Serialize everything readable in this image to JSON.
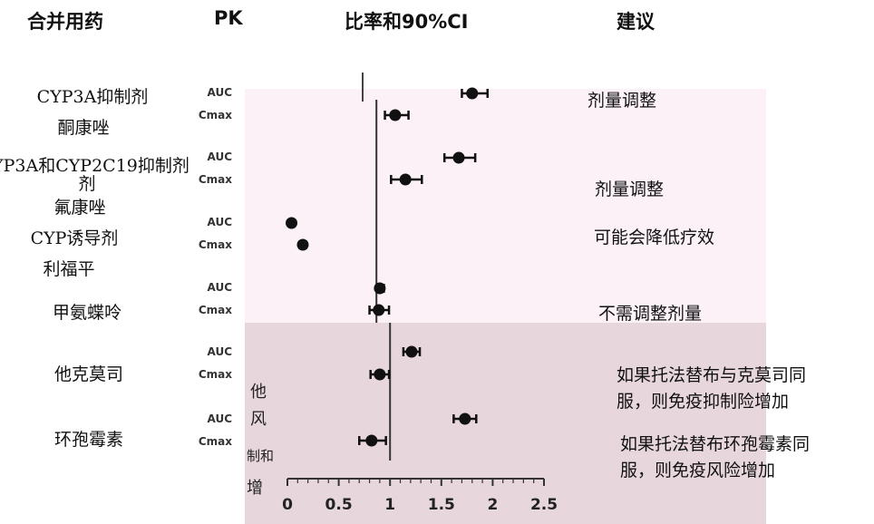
{
  "headers": {
    "drug": "合并用药",
    "pk": "PK",
    "ratio": "比率和90%CI",
    "recommendation": "建议"
  },
  "groups": [
    {
      "class_label": "CYP3A抑制剂",
      "drug": "酮康唑"
    },
    {
      "class_label": "YP3A和CYP2C19抑制剂",
      "class_label_line2": "剂",
      "drug": "氟康唑"
    },
    {
      "class_label": "CYP诱导剂",
      "drug": "利福平"
    },
    {
      "class_label": "",
      "drug": "甲氨蝶呤"
    },
    {
      "class_label": "",
      "drug": "他克莫司"
    },
    {
      "class_label": "",
      "drug": "环孢霉素"
    }
  ],
  "recommendations": [
    {
      "line1": "剂量调整",
      "line2": ""
    },
    {
      "line1": "剂量调整",
      "line2": ""
    },
    {
      "line1": "可能会降低疗效",
      "line2": ""
    },
    {
      "line1": "不需调整剂量",
      "line2": ""
    },
    {
      "line1": "如果托法替布与克莫司同",
      "line2": "服，则免疫抑制险增加"
    },
    {
      "line1": "如果托法替布环孢霉素同",
      "line2": "服，则免疫风险增加"
    }
  ],
  "stray_fragments": [
    "他",
    "风",
    "制和",
    "增"
  ],
  "chart_data": {
    "type": "scatter",
    "xlim": [
      0,
      2.5
    ],
    "x_ticks": [
      0,
      0.5,
      1,
      1.5,
      2,
      2.5
    ],
    "x_tick_labels": [
      "0",
      "0.5",
      "1",
      "1.5",
      "2",
      "2.5"
    ],
    "reference_line": 1,
    "series": [
      {
        "drug": "酮康唑",
        "pk": "AUC",
        "ratio": 1.8,
        "ci": [
          1.7,
          1.95
        ]
      },
      {
        "drug": "酮康唑",
        "pk": "Cmax",
        "ratio": 1.05,
        "ci": [
          0.95,
          1.18
        ]
      },
      {
        "drug": "氟康唑",
        "pk": "AUC",
        "ratio": 1.67,
        "ci": [
          1.53,
          1.83
        ]
      },
      {
        "drug": "氟康唑",
        "pk": "Cmax",
        "ratio": 1.15,
        "ci": [
          1.01,
          1.31
        ]
      },
      {
        "drug": "利福平",
        "pk": "AUC",
        "ratio": 0.04,
        "ci": [
          0.03,
          0.05
        ]
      },
      {
        "drug": "利福平",
        "pk": "Cmax",
        "ratio": 0.15,
        "ci": [
          0.12,
          0.18
        ]
      },
      {
        "drug": "甲氨蝶呤",
        "pk": "AUC",
        "ratio": 0.9,
        "ci": [
          0.87,
          0.94
        ]
      },
      {
        "drug": "甲氨蝶呤",
        "pk": "Cmax",
        "ratio": 0.89,
        "ci": [
          0.8,
          0.99
        ]
      },
      {
        "drug": "他克莫司",
        "pk": "AUC",
        "ratio": 1.21,
        "ci": [
          1.13,
          1.29
        ]
      },
      {
        "drug": "他克莫司",
        "pk": "Cmax",
        "ratio": 0.9,
        "ci": [
          0.81,
          0.99
        ]
      },
      {
        "drug": "环孢霉素",
        "pk": "AUC",
        "ratio": 1.73,
        "ci": [
          1.62,
          1.84
        ]
      },
      {
        "drug": "环孢霉素",
        "pk": "Cmax",
        "ratio": 0.82,
        "ci": [
          0.7,
          0.96
        ]
      }
    ]
  }
}
